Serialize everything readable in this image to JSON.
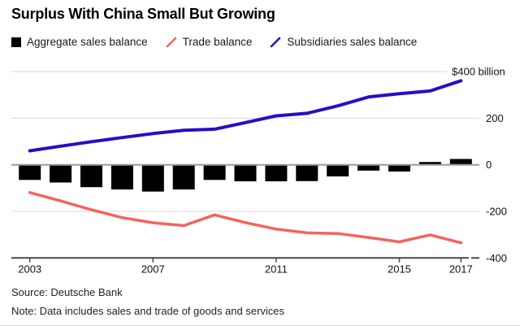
{
  "title": "Surplus With China Small But Growing",
  "legend": {
    "items": [
      {
        "label": "Aggregate sales balance",
        "swatch": "square",
        "color": "#000000"
      },
      {
        "label": "Trade balance",
        "swatch": "slash",
        "color": "#f4635e"
      },
      {
        "label": "Subsidiaries sales balance",
        "swatch": "slash",
        "color": "#2c0bc6"
      }
    ]
  },
  "chart_data": {
    "type": "combo",
    "title": "Surplus With China Small But Growing",
    "x": [
      2003,
      2004,
      2005,
      2006,
      2007,
      2008,
      2009,
      2010,
      2011,
      2012,
      2013,
      2014,
      2015,
      2016,
      2017
    ],
    "series": [
      {
        "name": "Aggregate sales balance",
        "type": "bar",
        "color": "#000000",
        "values": [
          -65,
          -76,
          -96,
          -106,
          -115,
          -106,
          -65,
          -71,
          -71,
          -70,
          -50,
          -25,
          -29,
          12,
          25
        ]
      },
      {
        "name": "Trade balance",
        "type": "line",
        "color": "#f4635e",
        "values": [
          -119,
          -155,
          -193,
          -227,
          -249,
          -261,
          -215,
          -248,
          -276,
          -292,
          -295,
          -312,
          -331,
          -301,
          -335
        ]
      },
      {
        "name": "Subsidiaries sales balance",
        "type": "line",
        "color": "#2c0bc6",
        "values": [
          60,
          80,
          99,
          117,
          134,
          148,
          153,
          181,
          210,
          221,
          253,
          291,
          305,
          317,
          361
        ]
      }
    ],
    "ylim": [
      -400,
      400
    ],
    "y_ticks": [
      {
        "value": 400,
        "label": "$400 billion"
      },
      {
        "value": 200,
        "label": "200"
      },
      {
        "value": 0,
        "label": "0"
      },
      {
        "value": -200,
        "label": "-200"
      },
      {
        "value": -400,
        "label": "-400"
      }
    ],
    "x_ticks": [
      2003,
      2007,
      2011,
      2015,
      2017
    ],
    "grid": true,
    "legend_position": "top",
    "colors": {
      "gridline": "#d9d9d9",
      "zero_line": "#9b9b9b",
      "axis": "#4a4a4a",
      "tick_label": "#111111"
    }
  },
  "source": "Source: Deutsche Bank",
  "note": "Note: Data includes sales and trade of goods and services"
}
